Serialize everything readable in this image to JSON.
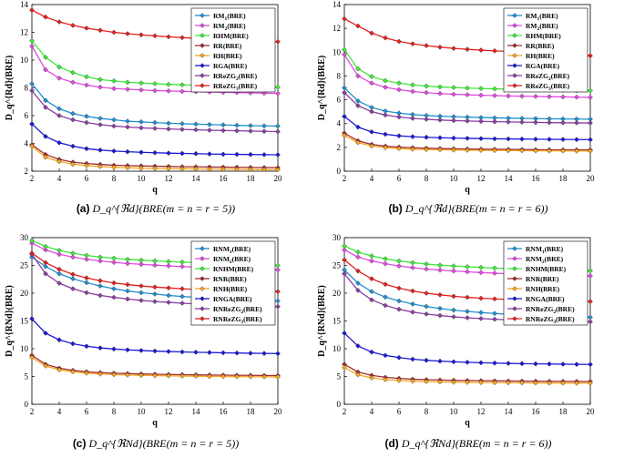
{
  "colors": {
    "RM1": "#1f8fcf",
    "RM2": "#e14be0",
    "RHM": "#3fe83b",
    "RR": "#a32b2b",
    "RH": "#f5a623",
    "RGA": "#1a1ad6",
    "RReZG2": "#8a3fa0",
    "RReZG3": "#e62020"
  },
  "chart_data": [
    {
      "type": "line",
      "panel_label": "(a)",
      "caption_math": "D_q^{ℜd}(BRE(m = n = r = 5))",
      "xlabel": "q",
      "ylabel": "D_q^{Rd}(BRE)",
      "x": [
        2,
        3,
        4,
        5,
        6,
        7,
        8,
        9,
        10,
        11,
        12,
        13,
        14,
        15,
        16,
        17,
        18,
        19,
        20
      ],
      "xticks": [
        2,
        4,
        6,
        8,
        10,
        12,
        14,
        16,
        18,
        20
      ],
      "ylim": [
        2,
        14
      ],
      "yticks": [
        2,
        4,
        6,
        8,
        10,
        12,
        14
      ],
      "series": [
        {
          "name": "RM1(BRE)",
          "color_key": "RM1",
          "values": [
            8.3,
            7.1,
            6.5,
            6.15,
            5.95,
            5.8,
            5.7,
            5.6,
            5.55,
            5.5,
            5.45,
            5.42,
            5.39,
            5.36,
            5.33,
            5.3,
            5.28,
            5.26,
            5.25
          ]
        },
        {
          "name": "RM2(BRE)",
          "color_key": "RM2",
          "values": [
            11.0,
            9.3,
            8.7,
            8.4,
            8.2,
            8.05,
            7.95,
            7.9,
            7.85,
            7.8,
            7.78,
            7.75,
            7.72,
            7.7,
            7.68,
            7.66,
            7.64,
            7.62,
            7.6
          ]
        },
        {
          "name": "RHM(BRE)",
          "color_key": "RHM",
          "values": [
            11.4,
            10.2,
            9.5,
            9.1,
            8.8,
            8.6,
            8.5,
            8.4,
            8.35,
            8.3,
            8.25,
            8.22,
            8.19,
            8.16,
            8.13,
            8.1,
            8.08,
            8.06,
            8.05
          ]
        },
        {
          "name": "RR(BRE)",
          "color_key": "RR",
          "values": [
            3.9,
            3.2,
            2.85,
            2.65,
            2.55,
            2.48,
            2.43,
            2.4,
            2.38,
            2.36,
            2.34,
            2.32,
            2.31,
            2.3,
            2.29,
            2.28,
            2.27,
            2.26,
            2.25
          ]
        },
        {
          "name": "RH(BRE)",
          "color_key": "RH",
          "values": [
            3.8,
            3.0,
            2.7,
            2.5,
            2.4,
            2.33,
            2.28,
            2.25,
            2.22,
            2.2,
            2.18,
            2.17,
            2.16,
            2.15,
            2.14,
            2.13,
            2.12,
            2.11,
            2.1
          ]
        },
        {
          "name": "RGA(BRE)",
          "color_key": "RGA",
          "values": [
            5.4,
            4.5,
            4.05,
            3.8,
            3.62,
            3.52,
            3.45,
            3.4,
            3.36,
            3.33,
            3.3,
            3.28,
            3.26,
            3.24,
            3.22,
            3.21,
            3.2,
            3.19,
            3.18
          ]
        },
        {
          "name": "RReZG2(BRE)",
          "color_key": "RReZG2",
          "values": [
            7.8,
            6.6,
            6.0,
            5.7,
            5.5,
            5.35,
            5.25,
            5.18,
            5.12,
            5.08,
            5.04,
            5.01,
            4.98,
            4.95,
            4.93,
            4.91,
            4.89,
            4.87,
            4.85
          ]
        },
        {
          "name": "RReZG3(BRE)",
          "color_key": "RReZG3",
          "values": [
            13.6,
            13.1,
            12.75,
            12.5,
            12.3,
            12.15,
            12.0,
            11.9,
            11.82,
            11.75,
            11.68,
            11.62,
            11.57,
            11.52,
            11.48,
            11.44,
            11.4,
            11.36,
            11.33
          ]
        }
      ]
    },
    {
      "type": "line",
      "panel_label": "(b)",
      "caption_math": "D_q^{ℜd}(BRE(m = n = r = 6))",
      "xlabel": "q",
      "ylabel": "D_q^{Rd}(BRE)",
      "x": [
        2,
        3,
        4,
        5,
        6,
        7,
        8,
        9,
        10,
        11,
        12,
        13,
        14,
        15,
        16,
        17,
        18,
        19,
        20
      ],
      "xticks": [
        2,
        4,
        6,
        8,
        10,
        12,
        14,
        16,
        18,
        20
      ],
      "ylim": [
        0,
        14
      ],
      "yticks": [
        0,
        2,
        4,
        6,
        8,
        10,
        12,
        14
      ],
      "series": [
        {
          "name": "RM1(BRE)",
          "color_key": "RM1",
          "values": [
            7.0,
            5.9,
            5.35,
            5.05,
            4.88,
            4.76,
            4.68,
            4.62,
            4.58,
            4.54,
            4.51,
            4.48,
            4.46,
            4.44,
            4.42,
            4.4,
            4.39,
            4.38,
            4.37
          ]
        },
        {
          "name": "RM2(BRE)",
          "color_key": "RM2",
          "values": [
            9.8,
            8.0,
            7.4,
            7.05,
            6.85,
            6.7,
            6.6,
            6.52,
            6.46,
            6.42,
            6.38,
            6.35,
            6.32,
            6.3,
            6.28,
            6.26,
            6.24,
            6.22,
            6.2
          ]
        },
        {
          "name": "RHM(BRE)",
          "color_key": "RHM",
          "values": [
            10.2,
            8.6,
            7.95,
            7.6,
            7.4,
            7.25,
            7.15,
            7.08,
            7.03,
            6.98,
            6.95,
            6.92,
            6.89,
            6.86,
            6.84,
            6.82,
            6.8,
            6.78,
            6.77
          ]
        },
        {
          "name": "RR(BRE)",
          "color_key": "RR",
          "values": [
            3.2,
            2.55,
            2.25,
            2.1,
            2.02,
            1.97,
            1.93,
            1.9,
            1.88,
            1.86,
            1.85,
            1.84,
            1.83,
            1.82,
            1.81,
            1.8,
            1.8,
            1.79,
            1.79
          ]
        },
        {
          "name": "RH(BRE)",
          "color_key": "RH",
          "values": [
            3.0,
            2.4,
            2.12,
            1.98,
            1.9,
            1.85,
            1.82,
            1.8,
            1.78,
            1.76,
            1.75,
            1.74,
            1.73,
            1.72,
            1.71,
            1.7,
            1.7,
            1.69,
            1.69
          ]
        },
        {
          "name": "RGA(BRE)",
          "color_key": "RGA",
          "values": [
            4.6,
            3.7,
            3.3,
            3.1,
            2.97,
            2.9,
            2.85,
            2.81,
            2.78,
            2.76,
            2.74,
            2.72,
            2.71,
            2.7,
            2.69,
            2.68,
            2.67,
            2.66,
            2.65
          ]
        },
        {
          "name": "RReZG2(BRE)",
          "color_key": "RReZG2",
          "values": [
            6.6,
            5.5,
            5.0,
            4.72,
            4.55,
            4.44,
            4.36,
            4.3,
            4.25,
            4.22,
            4.19,
            4.16,
            4.14,
            4.12,
            4.1,
            4.08,
            4.07,
            4.06,
            4.05
          ]
        },
        {
          "name": "RReZG3(BRE)",
          "color_key": "RReZG3",
          "values": [
            12.8,
            12.2,
            11.6,
            11.2,
            10.9,
            10.7,
            10.55,
            10.42,
            10.32,
            10.24,
            10.17,
            10.11,
            10.06,
            10.01,
            9.97,
            9.93,
            9.9,
            9.87,
            9.7
          ]
        }
      ]
    },
    {
      "type": "line",
      "panel_label": "(c)",
      "caption_math": "D_q^{ℜNd}(BRE(m = n = r = 5))",
      "xlabel": "q",
      "ylabel": "D_q^{RNd}(BRE)",
      "x": [
        2,
        3,
        4,
        5,
        6,
        7,
        8,
        9,
        10,
        11,
        12,
        13,
        14,
        15,
        16,
        17,
        18,
        19,
        20
      ],
      "xticks": [
        2,
        4,
        6,
        8,
        10,
        12,
        14,
        16,
        18,
        20
      ],
      "ylim": [
        0,
        30
      ],
      "yticks": [
        0,
        5,
        10,
        15,
        20,
        25,
        30
      ],
      "series": [
        {
          "name": "RNM1(BRE)",
          "color_key": "RM1",
          "values": [
            26.5,
            24.8,
            23.5,
            22.6,
            21.9,
            21.3,
            20.8,
            20.4,
            20.1,
            19.85,
            19.6,
            19.4,
            19.25,
            19.1,
            18.97,
            18.85,
            18.75,
            18.65,
            18.6
          ]
        },
        {
          "name": "RNM2(BRE)",
          "color_key": "RM2",
          "values": [
            29.0,
            27.8,
            27.0,
            26.5,
            26.1,
            25.8,
            25.55,
            25.35,
            25.2,
            25.05,
            24.92,
            24.8,
            24.7,
            24.6,
            24.5,
            24.42,
            24.34,
            24.27,
            24.2
          ]
        },
        {
          "name": "RNHM(BRE)",
          "color_key": "RHM",
          "values": [
            29.5,
            28.4,
            27.7,
            27.2,
            26.8,
            26.5,
            26.3,
            26.1,
            25.95,
            25.82,
            25.7,
            25.6,
            25.5,
            25.41,
            25.33,
            25.25,
            25.18,
            25.11,
            25.0
          ]
        },
        {
          "name": "RNR(BRE)",
          "color_key": "RR",
          "values": [
            8.8,
            7.2,
            6.5,
            6.1,
            5.85,
            5.7,
            5.6,
            5.52,
            5.46,
            5.41,
            5.37,
            5.33,
            5.3,
            5.27,
            5.24,
            5.22,
            5.2,
            5.18,
            5.17
          ]
        },
        {
          "name": "RNH(BRE)",
          "color_key": "RH",
          "values": [
            8.4,
            6.9,
            6.2,
            5.85,
            5.6,
            5.45,
            5.35,
            5.27,
            5.21,
            5.16,
            5.12,
            5.08,
            5.05,
            5.02,
            5.0,
            4.98,
            4.96,
            4.94,
            4.93
          ]
        },
        {
          "name": "RNGA(BRE)",
          "color_key": "RGA",
          "values": [
            15.4,
            12.8,
            11.6,
            10.9,
            10.45,
            10.15,
            9.95,
            9.8,
            9.68,
            9.58,
            9.5,
            9.43,
            9.37,
            9.32,
            9.27,
            9.23,
            9.19,
            9.16,
            9.13
          ]
        },
        {
          "name": "RNReZG2(BRE)",
          "color_key": "RReZG2",
          "values": [
            27.0,
            23.5,
            21.8,
            20.8,
            20.1,
            19.6,
            19.25,
            18.95,
            18.7,
            18.5,
            18.35,
            18.2,
            18.08,
            17.97,
            17.88,
            17.8,
            17.72,
            17.65,
            17.58
          ]
        },
        {
          "name": "RNReZG3(BRE)",
          "color_key": "RReZG3",
          "values": [
            27.2,
            25.5,
            24.3,
            23.4,
            22.75,
            22.25,
            21.85,
            21.55,
            21.3,
            21.1,
            20.95,
            20.8,
            20.68,
            20.58,
            20.5,
            20.43,
            20.37,
            20.32,
            20.3
          ]
        }
      ]
    },
    {
      "type": "line",
      "panel_label": "(d)",
      "caption_math": "D_q^{ℜNd}(BRE(m = n = r = 6))",
      "xlabel": "q",
      "ylabel": "D_q^{RNd}(BRE)",
      "x": [
        2,
        3,
        4,
        5,
        6,
        7,
        8,
        9,
        10,
        11,
        12,
        13,
        14,
        15,
        16,
        17,
        18,
        19,
        20
      ],
      "xticks": [
        2,
        4,
        6,
        8,
        10,
        12,
        14,
        16,
        18,
        20
      ],
      "ylim": [
        0,
        30
      ],
      "yticks": [
        0,
        5,
        10,
        15,
        20,
        25,
        30
      ],
      "series": [
        {
          "name": "RNM1(BRE)",
          "color_key": "RM1",
          "values": [
            24.2,
            21.8,
            20.3,
            19.3,
            18.6,
            18.05,
            17.6,
            17.25,
            16.95,
            16.72,
            16.52,
            16.35,
            16.2,
            16.08,
            15.97,
            15.88,
            15.8,
            15.72,
            15.65
          ]
        },
        {
          "name": "RNM2(BRE)",
          "color_key": "RM2",
          "values": [
            27.8,
            26.5,
            25.8,
            25.3,
            24.9,
            24.6,
            24.35,
            24.15,
            24.0,
            23.85,
            23.72,
            23.6,
            23.5,
            23.41,
            23.33,
            23.26,
            23.2,
            23.14,
            23.1
          ]
        },
        {
          "name": "RNHM(BRE)",
          "color_key": "RHM",
          "values": [
            28.5,
            27.4,
            26.7,
            26.2,
            25.8,
            25.5,
            25.25,
            25.05,
            24.9,
            24.76,
            24.64,
            24.53,
            24.44,
            24.36,
            24.29,
            24.22,
            24.16,
            24.1,
            24.05
          ]
        },
        {
          "name": "RNR(BRE)",
          "color_key": "RR",
          "values": [
            7.2,
            5.8,
            5.2,
            4.85,
            4.65,
            4.52,
            4.43,
            4.36,
            4.31,
            4.27,
            4.24,
            4.21,
            4.19,
            4.17,
            4.15,
            4.13,
            4.12,
            4.11,
            4.1
          ]
        },
        {
          "name": "RNH(BRE)",
          "color_key": "RH",
          "values": [
            6.6,
            5.3,
            4.75,
            4.45,
            4.28,
            4.16,
            4.08,
            4.02,
            3.98,
            3.94,
            3.91,
            3.89,
            3.87,
            3.85,
            3.83,
            3.82,
            3.81,
            3.8,
            3.79
          ]
        },
        {
          "name": "RNGA(BRE)",
          "color_key": "RGA",
          "values": [
            12.8,
            10.5,
            9.4,
            8.8,
            8.4,
            8.12,
            7.92,
            7.77,
            7.65,
            7.56,
            7.48,
            7.42,
            7.37,
            7.32,
            7.28,
            7.25,
            7.22,
            7.19,
            7.17
          ]
        },
        {
          "name": "RNReZG2(BRE)",
          "color_key": "RReZG2",
          "values": [
            23.5,
            20.5,
            18.8,
            17.8,
            17.1,
            16.6,
            16.25,
            15.97,
            15.75,
            15.57,
            15.43,
            15.31,
            15.21,
            15.13,
            15.06,
            15.0,
            14.95,
            14.9,
            14.86
          ]
        },
        {
          "name": "RNReZG3(BRE)",
          "color_key": "RReZG3",
          "values": [
            26.0,
            24.0,
            22.6,
            21.6,
            20.9,
            20.4,
            20.0,
            19.7,
            19.45,
            19.25,
            19.1,
            18.97,
            18.86,
            18.77,
            18.7,
            18.64,
            18.59,
            18.55,
            18.5
          ]
        }
      ]
    }
  ]
}
